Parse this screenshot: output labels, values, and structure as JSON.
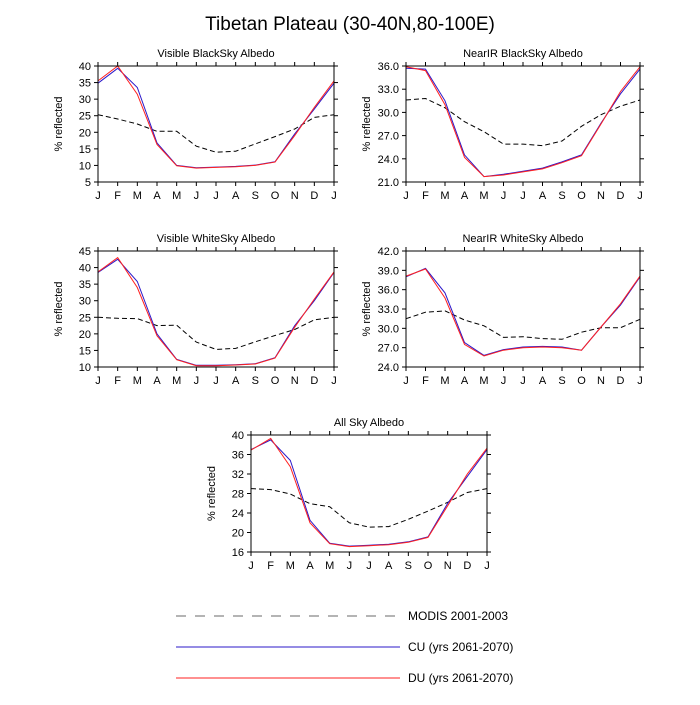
{
  "title": "Tibetan Plateau (30-40N,80-100E)",
  "colors": {
    "modis": "#000000",
    "cu": "#2b18c9",
    "du": "#ff2020",
    "axis": "#000000"
  },
  "legend": [
    {
      "key": "modis",
      "label": "MODIS 2001-2003",
      "style": "dashed"
    },
    {
      "key": "cu",
      "label": "CU (yrs 2061-2070)",
      "style": "solid"
    },
    {
      "key": "du",
      "label": "DU (yrs 2061-2070)",
      "style": "solid"
    }
  ],
  "chart_data": [
    {
      "id": "vis-black",
      "type": "line",
      "title": "Visible BlackSky Albedo",
      "ylabel": "% reflected",
      "xlabel": "",
      "categories": [
        "J",
        "F",
        "M",
        "A",
        "M",
        "J",
        "J",
        "A",
        "S",
        "O",
        "N",
        "D",
        "J"
      ],
      "ylim": [
        5,
        40
      ],
      "yticks": [
        "5",
        "10",
        "15",
        "20",
        "25",
        "30",
        "35",
        "40"
      ],
      "series": [
        {
          "name": "MODIS 2001-2003",
          "key": "modis",
          "values": [
            25.3,
            24.0,
            22.5,
            20.3,
            20.3,
            15.8,
            14.0,
            14.3,
            16.5,
            18.7,
            21.0,
            24.5,
            25.3
          ]
        },
        {
          "name": "CU (yrs 2061-2070)",
          "key": "cu",
          "values": [
            34.8,
            39.3,
            33.5,
            16.8,
            10.0,
            9.3,
            9.5,
            9.7,
            10.1,
            11.1,
            19.5,
            27.0,
            34.8
          ]
        },
        {
          "name": "DU (yrs 2061-2070)",
          "key": "du",
          "values": [
            35.5,
            40.0,
            31.5,
            16.3,
            9.9,
            9.2,
            9.4,
            9.6,
            10.0,
            11.0,
            19.0,
            27.5,
            35.5
          ]
        }
      ]
    },
    {
      "id": "nir-black",
      "type": "line",
      "title": "NearIR BlackSky Albedo",
      "ylabel": "% reflected",
      "xlabel": "",
      "categories": [
        "J",
        "F",
        "M",
        "A",
        "M",
        "J",
        "J",
        "A",
        "S",
        "O",
        "N",
        "D",
        "J"
      ],
      "ylim": [
        21.0,
        36.0
      ],
      "yticks": [
        "21.0",
        "24.0",
        "27.0",
        "30.0",
        "33.0",
        "36.0"
      ],
      "series": [
        {
          "name": "MODIS 2001-2003",
          "key": "modis",
          "values": [
            31.6,
            31.8,
            30.6,
            28.8,
            27.5,
            25.9,
            25.9,
            25.7,
            26.3,
            28.2,
            29.7,
            30.8,
            31.6
          ]
        },
        {
          "name": "CU (yrs 2061-2070)",
          "key": "cu",
          "values": [
            35.7,
            35.6,
            31.5,
            24.5,
            21.7,
            22.0,
            22.4,
            22.8,
            23.6,
            24.5,
            28.6,
            32.4,
            35.6
          ]
        },
        {
          "name": "DU (yrs 2061-2070)",
          "key": "du",
          "values": [
            35.9,
            35.4,
            31.0,
            24.2,
            21.7,
            21.9,
            22.3,
            22.7,
            23.5,
            24.4,
            28.5,
            32.7,
            35.9
          ]
        }
      ]
    },
    {
      "id": "vis-white",
      "type": "line",
      "title": "Visible WhiteSky Albedo",
      "ylabel": "% reflected",
      "xlabel": "",
      "categories": [
        "J",
        "F",
        "M",
        "A",
        "M",
        "J",
        "J",
        "A",
        "S",
        "O",
        "N",
        "D",
        "J"
      ],
      "ylim": [
        10,
        45
      ],
      "yticks": [
        "10",
        "15",
        "20",
        "25",
        "30",
        "35",
        "40",
        "45"
      ],
      "series": [
        {
          "name": "MODIS 2001-2003",
          "key": "modis",
          "values": [
            25.0,
            24.7,
            24.6,
            22.5,
            22.6,
            17.5,
            15.3,
            15.6,
            17.6,
            19.5,
            21.3,
            24.2,
            25.0
          ]
        },
        {
          "name": "CU (yrs 2061-2070)",
          "key": "cu",
          "values": [
            38.5,
            42.5,
            35.8,
            20.0,
            12.3,
            10.5,
            10.5,
            10.7,
            11.0,
            12.8,
            22.5,
            30.0,
            38.5
          ]
        },
        {
          "name": "DU (yrs 2061-2070)",
          "key": "du",
          "values": [
            38.7,
            43.0,
            34.0,
            19.4,
            12.2,
            10.4,
            10.4,
            10.6,
            10.9,
            12.7,
            22.0,
            30.5,
            38.7
          ]
        }
      ]
    },
    {
      "id": "nir-white",
      "type": "line",
      "title": "NearIR WhiteSky Albedo",
      "ylabel": "% reflected",
      "xlabel": "",
      "categories": [
        "J",
        "F",
        "M",
        "A",
        "M",
        "J",
        "J",
        "A",
        "S",
        "O",
        "N",
        "D",
        "J"
      ],
      "ylim": [
        24.0,
        42.0
      ],
      "yticks": [
        "24.0",
        "27.0",
        "30.0",
        "33.0",
        "36.0",
        "39.0",
        "42.0"
      ],
      "series": [
        {
          "name": "MODIS 2001-2003",
          "key": "modis",
          "values": [
            31.5,
            32.5,
            32.7,
            31.3,
            30.4,
            28.6,
            28.7,
            28.4,
            28.3,
            29.4,
            30.1,
            30.1,
            31.4
          ]
        },
        {
          "name": "CU (yrs 2061-2070)",
          "key": "cu",
          "values": [
            38.0,
            39.3,
            35.5,
            27.8,
            25.8,
            26.7,
            27.1,
            27.2,
            27.1,
            26.6,
            30.2,
            33.6,
            38.0
          ]
        },
        {
          "name": "DU (yrs 2061-2070)",
          "key": "du",
          "values": [
            38.1,
            39.2,
            34.7,
            27.5,
            25.7,
            26.6,
            27.0,
            27.1,
            27.0,
            26.6,
            30.2,
            33.8,
            38.1
          ]
        }
      ]
    },
    {
      "id": "all-sky",
      "type": "line",
      "title": "All Sky Albedo",
      "ylabel": "% reflected",
      "xlabel": "",
      "categories": [
        "J",
        "F",
        "M",
        "A",
        "M",
        "J",
        "J",
        "A",
        "S",
        "O",
        "N",
        "D",
        "J"
      ],
      "ylim": [
        16,
        40
      ],
      "yticks": [
        "16",
        "20",
        "24",
        "28",
        "32",
        "36",
        "40"
      ],
      "series": [
        {
          "name": "MODIS 2001-2003",
          "key": "modis",
          "values": [
            29.0,
            28.8,
            27.9,
            25.9,
            25.3,
            22.0,
            21.1,
            21.2,
            22.7,
            24.4,
            26.2,
            28.2,
            29.0
          ]
        },
        {
          "name": "CU (yrs 2061-2070)",
          "key": "cu",
          "values": [
            37.0,
            39.0,
            34.8,
            22.5,
            17.8,
            17.2,
            17.4,
            17.6,
            18.1,
            19.1,
            26.0,
            31.5,
            37.0
          ]
        },
        {
          "name": "DU (yrs 2061-2070)",
          "key": "du",
          "values": [
            36.9,
            39.3,
            33.5,
            22.0,
            17.7,
            17.1,
            17.3,
            17.5,
            18.0,
            19.0,
            25.5,
            32.0,
            37.3
          ]
        }
      ]
    }
  ]
}
